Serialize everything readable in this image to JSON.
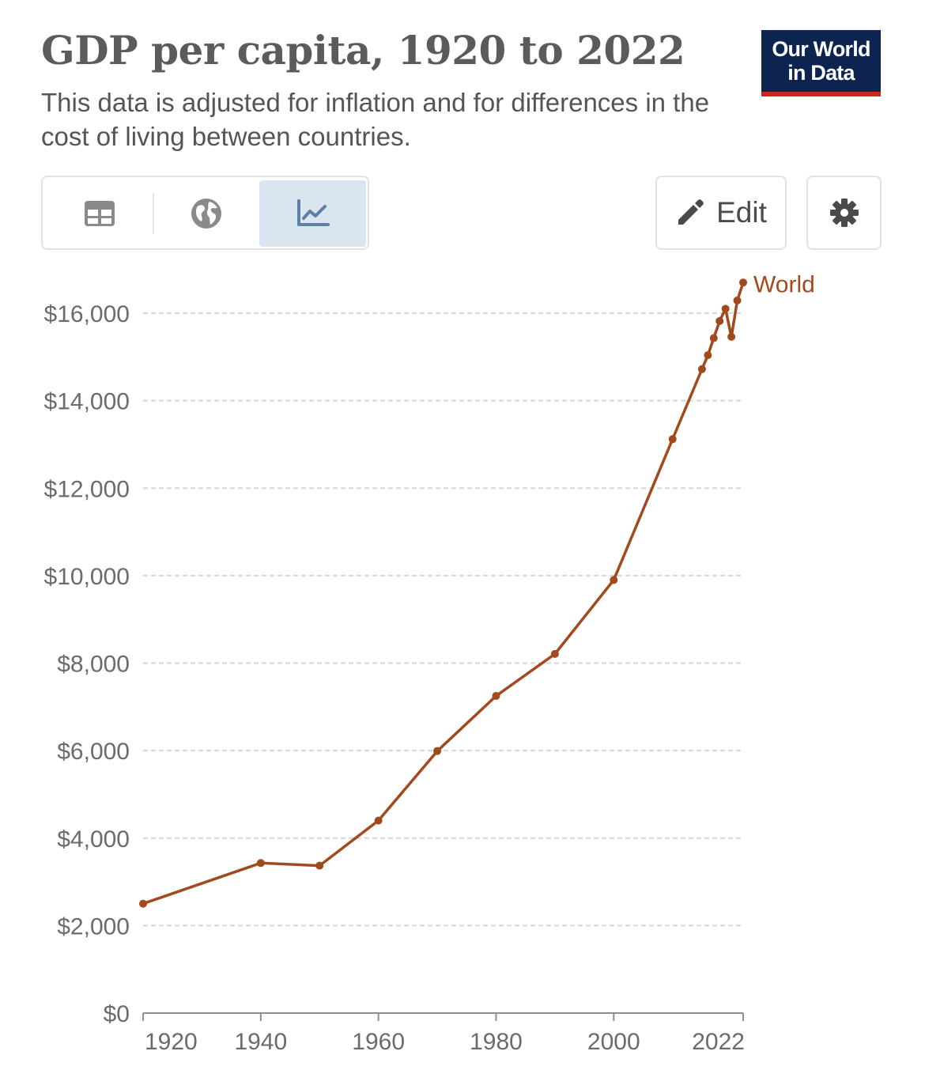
{
  "header": {
    "title": "GDP per capita, 1920 to 2022",
    "subtitle": "This data is adjusted for inflation and for differences in the cost of living between countries."
  },
  "logo": {
    "line1": "Our World",
    "line2": "in Data"
  },
  "tabs": [
    {
      "icon": "table-icon",
      "selected": false
    },
    {
      "icon": "globe-icon",
      "selected": false
    },
    {
      "icon": "line-chart-icon",
      "selected": true
    }
  ],
  "toolbar": {
    "edit_label": "Edit",
    "edit_icon": "pencil-icon",
    "settings_icon": "gear-icon"
  },
  "colors": {
    "series": "#a14a1e",
    "logo_bg": "#0d2451",
    "logo_accent": "#ce261e",
    "selected_tab": "#dbe5f0"
  },
  "chart_data": {
    "type": "line",
    "title": "GDP per capita, 1920 to 2022",
    "xlabel": "",
    "ylabel": "",
    "xlim": [
      1920,
      2022
    ],
    "ylim": [
      0,
      16000
    ],
    "yticks": [
      0,
      2000,
      4000,
      6000,
      8000,
      10000,
      12000,
      14000,
      16000
    ],
    "ytick_labels": [
      "$0",
      "$2,000",
      "$4,000",
      "$6,000",
      "$8,000",
      "$10,000",
      "$12,000",
      "$14,000",
      "$16,000"
    ],
    "xticks": [
      1920,
      1940,
      1960,
      1980,
      2000,
      2022
    ],
    "xtick_labels": [
      "1920",
      "1940",
      "1960",
      "1980",
      "2000",
      "2022"
    ],
    "grid": "horizontal dashed",
    "legend": "end-of-line label",
    "series": [
      {
        "name": "World",
        "x": [
          1920,
          1940,
          1950,
          1960,
          1970,
          1980,
          1990,
          2000,
          2010,
          2015,
          2016,
          2017,
          2018,
          2019,
          2020,
          2021,
          2022
        ],
        "values": [
          2500,
          3430,
          3370,
          4400,
          5990,
          7250,
          8210,
          9900,
          13120,
          14720,
          15040,
          15430,
          15820,
          16100,
          15460,
          16290,
          16700
        ]
      }
    ]
  }
}
